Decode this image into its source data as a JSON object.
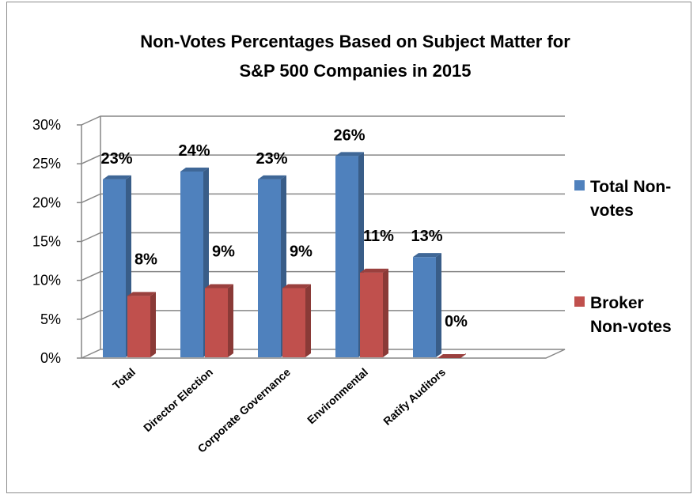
{
  "chart_data": {
    "type": "bar",
    "title_lines": [
      "Non-Votes Percentages Based on Subject Matter for",
      "S&P 500 Companies in 2015"
    ],
    "categories": [
      "Total",
      "Director Election",
      "Corporate Governance",
      "Environmental",
      "Ratify Auditors"
    ],
    "series": [
      {
        "name_lines": [
          "Total Non-",
          "votes"
        ],
        "color": "#4f81bd",
        "values": [
          23,
          24,
          23,
          26,
          13
        ],
        "value_labels": [
          "23%",
          "24%",
          "23%",
          "26%",
          "13%"
        ]
      },
      {
        "name_lines": [
          "Broker",
          "Non-votes"
        ],
        "color": "#c0504d",
        "values": [
          8,
          9,
          9,
          11,
          0
        ],
        "value_labels": [
          "8%",
          "9%",
          "9%",
          "11%",
          "0%"
        ]
      }
    ],
    "y_ticks": [
      "0%",
      "5%",
      "10%",
      "15%",
      "20%",
      "25%",
      "30%"
    ],
    "ylim": [
      0,
      30
    ],
    "grid": true,
    "legend_position": "right",
    "xlabel": "",
    "ylabel": ""
  }
}
